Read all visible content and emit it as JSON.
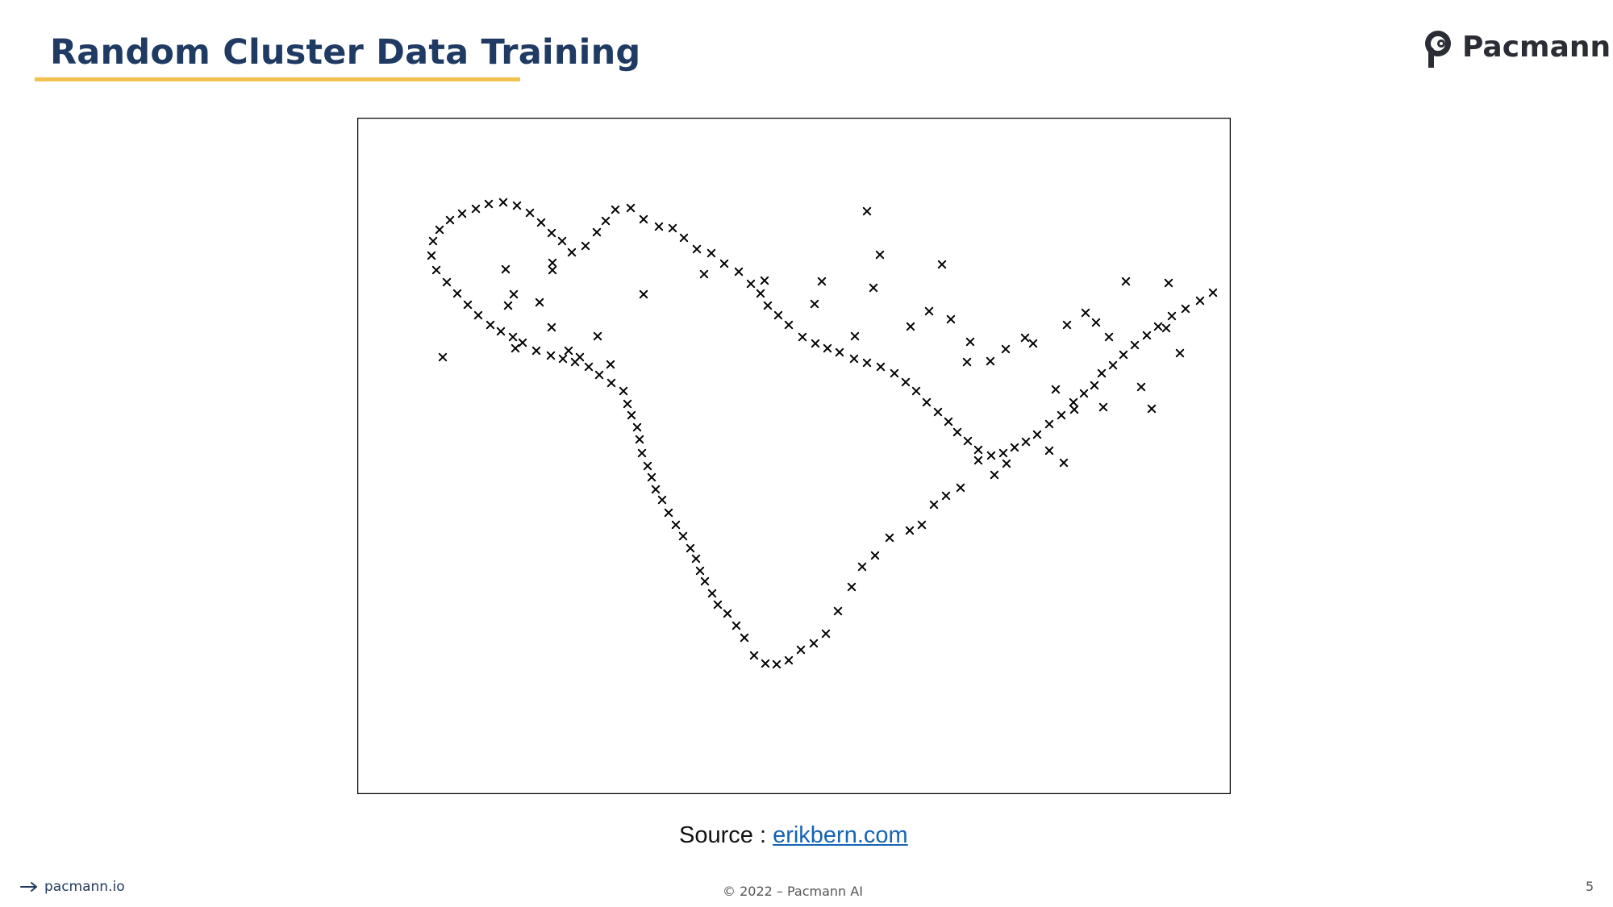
{
  "slide": {
    "title": "Random Cluster Data Training",
    "brand_name": "Pacmann",
    "source_label": "Source : ",
    "source_link": "erikbern.com",
    "footer_site": "pacmann.io",
    "footer_copyright": "© 2022 – Pacmann AI",
    "page_number": "5",
    "colors": {
      "title": "#1f3b63",
      "underline": "#f2c14e",
      "link": "#1464b5",
      "marker": "#000000"
    }
  },
  "chart_data": {
    "type": "scatter",
    "title": "",
    "xlabel": "",
    "ylabel": "",
    "marker": "x",
    "grid": false,
    "legend": "none",
    "xlim": [
      0,
      1083
    ],
    "ylim": [
      0,
      839
    ],
    "series": [
      {
        "name": "",
        "points": [
          [
            106,
            542
          ],
          [
            184,
            651
          ],
          [
            194,
            620
          ],
          [
            187,
            606
          ],
          [
            242,
            659
          ],
          [
            242,
            650
          ],
          [
            196,
            553
          ],
          [
            226,
            610
          ],
          [
            241,
            579
          ],
          [
            262,
            550
          ],
          [
            276,
            542
          ],
          [
            298,
            568
          ],
          [
            314,
            533
          ],
          [
            355,
            620
          ],
          [
            430,
            645
          ],
          [
            505,
            637
          ],
          [
            567,
            608
          ],
          [
            576,
            636
          ],
          [
            617,
            568
          ],
          [
            640,
            628
          ],
          [
            648,
            669
          ],
          [
            632,
            723
          ],
          [
            686,
            580
          ],
          [
            709,
            599
          ],
          [
            725,
            657
          ],
          [
            736,
            589
          ],
          [
            756,
            536
          ],
          [
            760,
            561
          ],
          [
            785,
            537
          ],
          [
            804,
            552
          ],
          [
            828,
            566
          ],
          [
            838,
            559
          ],
          [
            880,
            582
          ],
          [
            903,
            597
          ],
          [
            953,
            636
          ],
          [
            972,
            505
          ],
          [
            1020,
            547
          ],
          [
            1003,
            578
          ],
          [
            1006,
            634
          ],
          [
            932,
            567
          ],
          [
            866,
            502
          ],
          [
            889,
            477
          ],
          [
            916,
            585
          ],
          [
            985,
            478
          ],
          [
            876,
            411
          ],
          [
            925,
            480
          ],
          [
            858,
            426
          ],
          [
            805,
            410
          ],
          [
            790,
            396
          ],
          [
            770,
            414
          ],
          [
            748,
            380
          ],
          [
            730,
            370
          ],
          [
            715,
            359
          ],
          [
            700,
            334
          ],
          [
            685,
            327
          ],
          [
            660,
            318
          ],
          [
            642,
            296
          ],
          [
            626,
            282
          ],
          [
            613,
            257
          ],
          [
            596,
            227
          ],
          [
            581,
            199
          ],
          [
            566,
            187
          ],
          [
            550,
            179
          ],
          [
            535,
            166
          ],
          [
            520,
            161
          ],
          [
            506,
            162
          ],
          [
            492,
            172
          ],
          [
            480,
            194
          ],
          [
            470,
            209
          ],
          [
            459,
            224
          ],
          [
            447,
            235
          ],
          [
            440,
            249
          ],
          [
            431,
            264
          ],
          [
            425,
            277
          ],
          [
            420,
            292
          ],
          [
            413,
            305
          ],
          [
            404,
            320
          ],
          [
            395,
            334
          ],
          [
            386,
            349
          ],
          [
            378,
            365
          ],
          [
            370,
            378
          ],
          [
            365,
            393
          ],
          [
            360,
            407
          ],
          [
            353,
            423
          ],
          [
            350,
            440
          ],
          [
            347,
            455
          ],
          [
            340,
            470
          ],
          [
            335,
            484
          ],
          [
            330,
            500
          ],
          [
            315,
            510
          ],
          [
            300,
            520
          ],
          [
            287,
            530
          ],
          [
            270,
            536
          ],
          [
            255,
            540
          ],
          [
            240,
            544
          ],
          [
            222,
            550
          ],
          [
            205,
            560
          ],
          [
            193,
            567
          ],
          [
            178,
            574
          ],
          [
            165,
            582
          ],
          [
            150,
            594
          ],
          [
            137,
            607
          ],
          [
            124,
            621
          ],
          [
            111,
            635
          ],
          [
            98,
            650
          ],
          [
            92,
            668
          ],
          [
            94,
            686
          ],
          [
            102,
            700
          ],
          [
            115,
            712
          ],
          [
            130,
            720
          ],
          [
            147,
            726
          ],
          [
            163,
            732
          ],
          [
            181,
            734
          ],
          [
            198,
            730
          ],
          [
            214,
            721
          ],
          [
            228,
            709
          ],
          [
            241,
            696
          ],
          [
            254,
            686
          ],
          [
            266,
            672
          ],
          [
            283,
            680
          ],
          [
            297,
            697
          ],
          [
            308,
            711
          ],
          [
            320,
            725
          ],
          [
            339,
            727
          ],
          [
            355,
            713
          ],
          [
            374,
            704
          ],
          [
            391,
            702
          ],
          [
            405,
            690
          ],
          [
            421,
            676
          ],
          [
            439,
            671
          ],
          [
            455,
            658
          ],
          [
            473,
            648
          ],
          [
            488,
            633
          ],
          [
            500,
            621
          ],
          [
            509,
            606
          ],
          [
            522,
            594
          ],
          [
            535,
            582
          ],
          [
            552,
            567
          ],
          [
            568,
            559
          ],
          [
            583,
            553
          ],
          [
            598,
            548
          ],
          [
            616,
            540
          ],
          [
            632,
            535
          ],
          [
            649,
            530
          ],
          [
            666,
            522
          ],
          [
            680,
            511
          ],
          [
            693,
            500
          ],
          [
            706,
            486
          ],
          [
            720,
            474
          ],
          [
            733,
            462
          ],
          [
            744,
            449
          ],
          [
            757,
            438
          ],
          [
            770,
            427
          ],
          [
            786,
            420
          ],
          [
            801,
            423
          ],
          [
            815,
            430
          ],
          [
            829,
            437
          ],
          [
            843,
            446
          ],
          [
            858,
            459
          ],
          [
            873,
            470
          ],
          [
            888,
            486
          ],
          [
            901,
            497
          ],
          [
            914,
            507
          ],
          [
            923,
            522
          ],
          [
            937,
            532
          ],
          [
            950,
            545
          ],
          [
            964,
            557
          ],
          [
            979,
            569
          ],
          [
            993,
            580
          ],
          [
            1010,
            593
          ],
          [
            1027,
            602
          ],
          [
            1045,
            612
          ],
          [
            1061,
            622
          ]
        ]
      }
    ]
  }
}
